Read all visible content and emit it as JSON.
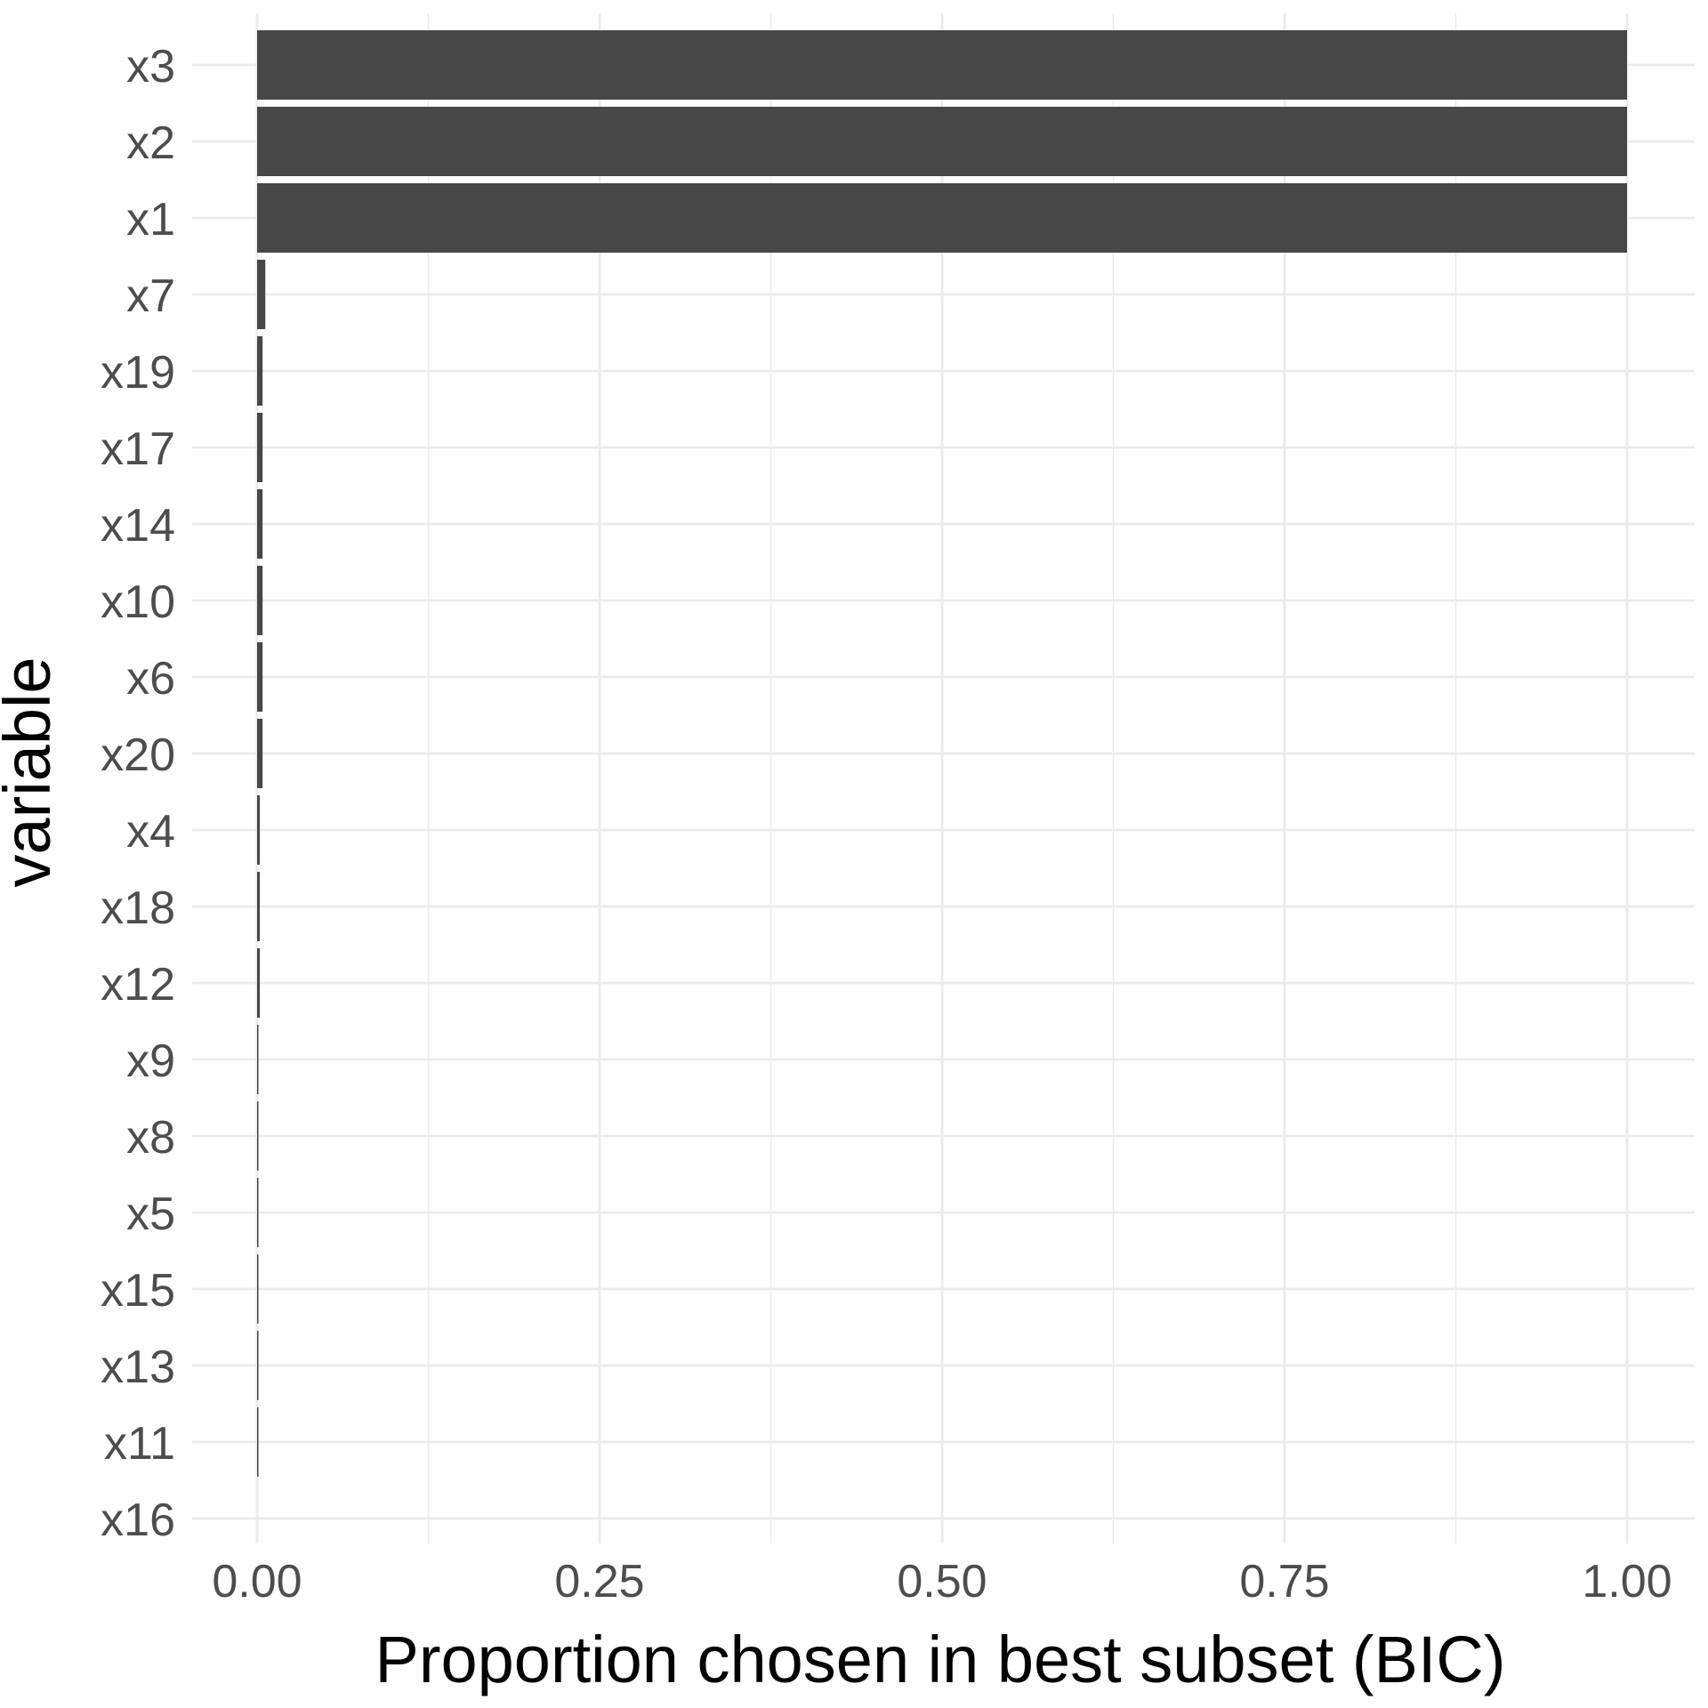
{
  "chart_data": {
    "type": "bar",
    "orientation": "horizontal",
    "xlabel": "Proportion chosen in best subset (BIC)",
    "ylabel": "variable",
    "xlim": [
      0,
      1
    ],
    "x_ticks": [
      "0.00",
      "0.25",
      "0.50",
      "0.75",
      "1.00"
    ],
    "x_tick_values": [
      0,
      0.25,
      0.5,
      0.75,
      1.0
    ],
    "categories": [
      "x3",
      "x2",
      "x1",
      "x7",
      "x19",
      "x17",
      "x14",
      "x10",
      "x6",
      "x20",
      "x4",
      "x18",
      "x12",
      "x9",
      "x8",
      "x5",
      "x15",
      "x13",
      "x11",
      "x16"
    ],
    "values": [
      1.0,
      1.0,
      1.0,
      0.006,
      0.004,
      0.004,
      0.004,
      0.004,
      0.004,
      0.004,
      0.002,
      0.002,
      0.002,
      0.001,
      0.001,
      0.001,
      0.001,
      0.001,
      0.001,
      0.0
    ],
    "bar_color": "#474747",
    "grid": true,
    "legend": "none"
  }
}
